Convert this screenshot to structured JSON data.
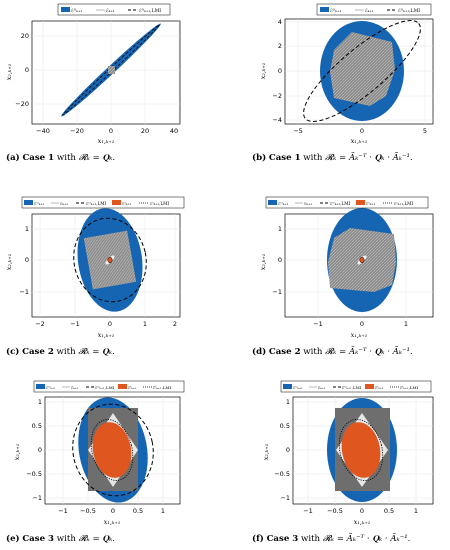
{
  "figure": {
    "panels": [
      {
        "id": "a",
        "caption": {
          "label": "(a)",
          "case": "Case 1",
          "text": " with ",
          "formula": "𝓡ₖ = 𝐐ₖ."
        },
        "legend": [
          "ℰᴼₖ₊₁",
          "ℰₖ₊₁",
          "ℰᴼₖ₊₁,LMI"
        ],
        "xlabel": "x₁,ₖ₊₁",
        "ylabel": "x₂,ₖ₊₁",
        "xticks": [
          "−40",
          "−20",
          "0",
          "20",
          "40"
        ],
        "yticks": [
          "20",
          "0",
          "−20"
        ]
      },
      {
        "id": "b",
        "caption": {
          "label": "(b)",
          "case": "Case 1",
          "text": " with ",
          "formula": "𝓡ₖ = Ãₖ⁻ᵀ · 𝐐ₖ · Ãₖ⁻¹."
        },
        "legend": [
          "ℰᴼₖ₊₁",
          "ℰₖ₊₁",
          "ℰᴼₖ₊₁,LMI"
        ],
        "xlabel": "x₁,ₖ₊₁",
        "ylabel": "x₂,ₖ₊₁",
        "xticks": [
          "−5",
          "0",
          "5"
        ],
        "yticks": [
          "4",
          "2",
          "0",
          "−2",
          "−4"
        ]
      },
      {
        "id": "c",
        "caption": {
          "label": "(c)",
          "case": "Case 2",
          "text": " with ",
          "formula": "𝓡ₖ = 𝐐ₖ."
        },
        "legend": [
          "ℰᴼₖ₊₁",
          "ℰₖ₊₁",
          "ℰᴼₖ₊₁,LMI",
          "ℰᴵₖ₊₁",
          "ℰᴵₖ₊₁,LMI"
        ],
        "xlabel": "x₁,ₖ₊₁",
        "ylabel": "x₂,ₖ₊₁",
        "xticks": [
          "−2",
          "−1",
          "0",
          "1",
          "2"
        ],
        "yticks": [
          "1",
          "0",
          "−1"
        ]
      },
      {
        "id": "d",
        "caption": {
          "label": "(d)",
          "case": "Case 2",
          "text": " with ",
          "formula": "𝓡ₖ = Ãₖ⁻ᵀ · 𝐐ₖ · Ãₖ⁻¹."
        },
        "legend": [
          "ℰᴼₖ₊₁",
          "ℰₖ₊₁",
          "ℰᴼₖ₊₁,LMI",
          "ℰᴵₖ₊₁",
          "ℰᴵₖ₊₁,LMI"
        ],
        "xlabel": "x₁,ₖ₊₁",
        "ylabel": "x₂,ₖ₊₁",
        "xticks": [
          "−1",
          "0",
          "1"
        ],
        "yticks": [
          "1",
          "0",
          "−1"
        ]
      },
      {
        "id": "e",
        "caption": {
          "label": "(e)",
          "case": "Case 3",
          "text": " with ",
          "formula": "𝓡ₖ = 𝐐ₖ."
        },
        "legend": [
          "ℰᴼₖ₊₁",
          "ℰₖ₊₁",
          "ℰᴼₖ₊₁,LMI",
          "ℰᴵₖ₊₁",
          "ℰᴵₖ₊₁,LMI"
        ],
        "xlabel": "x₁,ₖ₊₁",
        "ylabel": "x₂,ₖ₊₁",
        "xticks": [
          "−1",
          "−0.5",
          "0",
          "0.5",
          "1"
        ],
        "yticks": [
          "1",
          "0.5",
          "0",
          "−0.5",
          "−1"
        ]
      },
      {
        "id": "f",
        "caption": {
          "label": "(f)",
          "case": "Case 3",
          "text": " with ",
          "formula": "𝓡ₖ = Ãₖ⁻ᵀ · 𝐐ₖ · Ãₖ⁻¹."
        },
        "legend": [
          "ℰᴼₖ₊₁",
          "ℰₖ₊₁",
          "ℰᴼₖ₊₁,LMI",
          "ℰᴵₖ₊₁",
          "ℰᴵₖ₊₁,LMI"
        ],
        "xlabel": "x₁,ₖ₊₁",
        "ylabel": "x₂,ₖ₊₁",
        "xticks": [
          "−1",
          "−0.5",
          "0",
          "0.5",
          "1"
        ],
        "yticks": [
          "1",
          "0.5",
          "0",
          "−0.5",
          "−1"
        ]
      }
    ],
    "colors": {
      "outer": "#1565b3",
      "inner": "#e0561f",
      "set": "#7f7f7f",
      "dash": "#000000"
    }
  }
}
